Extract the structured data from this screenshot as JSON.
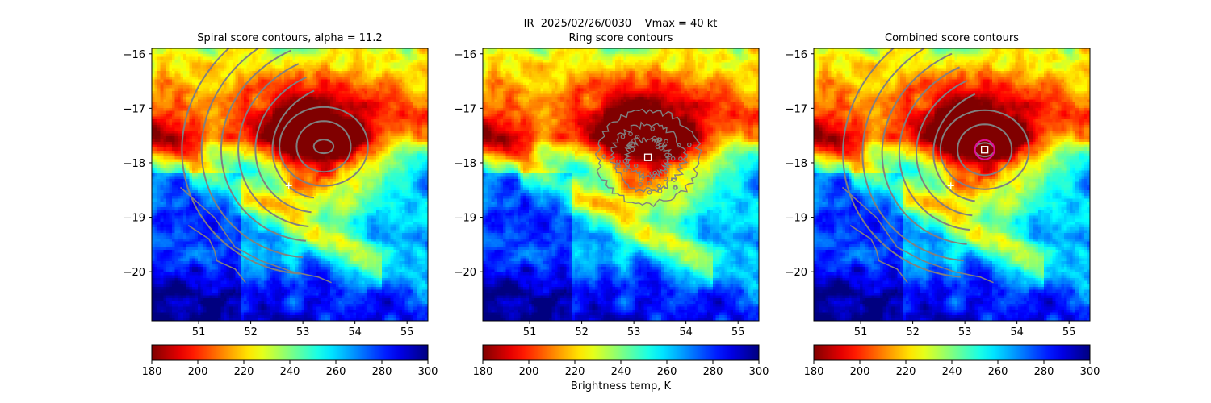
{
  "suptitle": "IR  2025/02/26/0030    Vmax = 40 kt",
  "colorbar_label": "Brightness temp, K",
  "colormap": "jet_r",
  "colors": {
    "contour": "#808080",
    "marker_center": "#ffffff",
    "combined_circle": "#e0109a"
  },
  "chart_data": [
    {
      "type": "heatmap",
      "title": "Spiral score contours, alpha = 11.2",
      "xlim": [
        50.1,
        55.4
      ],
      "ylim": [
        -20.9,
        -15.9
      ],
      "xticks": [
        51,
        52,
        53,
        54,
        55
      ],
      "yticks": [
        -16,
        -17,
        -18,
        -19,
        -20
      ],
      "colorbar": {
        "min": 180,
        "max": 300,
        "ticks": [
          180,
          200,
          220,
          240,
          260,
          280,
          300
        ]
      },
      "marker": {
        "shape": "plus",
        "x": 52.73,
        "y": -18.42
      },
      "contours": "spiral"
    },
    {
      "type": "heatmap",
      "title": "Ring score contours",
      "xlim": [
        50.1,
        55.4
      ],
      "ylim": [
        -20.9,
        -15.9
      ],
      "xticks": [
        51,
        52,
        53,
        54,
        55
      ],
      "yticks": [
        -16,
        -17,
        -18,
        -19,
        -20
      ],
      "colorbar": {
        "min": 180,
        "max": 300,
        "ticks": [
          180,
          200,
          220,
          240,
          260,
          280,
          300
        ]
      },
      "marker": {
        "shape": "square",
        "x": 53.27,
        "y": -17.9
      },
      "contours": "ring"
    },
    {
      "type": "heatmap",
      "title": "Combined score contours",
      "xlim": [
        50.1,
        55.4
      ],
      "ylim": [
        -20.9,
        -15.9
      ],
      "xticks": [
        51,
        52,
        53,
        54,
        55
      ],
      "yticks": [
        -16,
        -17,
        -18,
        -19,
        -20
      ],
      "colorbar": {
        "min": 180,
        "max": 300,
        "ticks": [
          180,
          200,
          220,
          240,
          260,
          280,
          300
        ]
      },
      "marker": {
        "shape": "plus",
        "x": 52.73,
        "y": -18.42
      },
      "marker2": {
        "shape": "square",
        "x": 53.38,
        "y": -17.76
      },
      "contours": "combined"
    }
  ]
}
